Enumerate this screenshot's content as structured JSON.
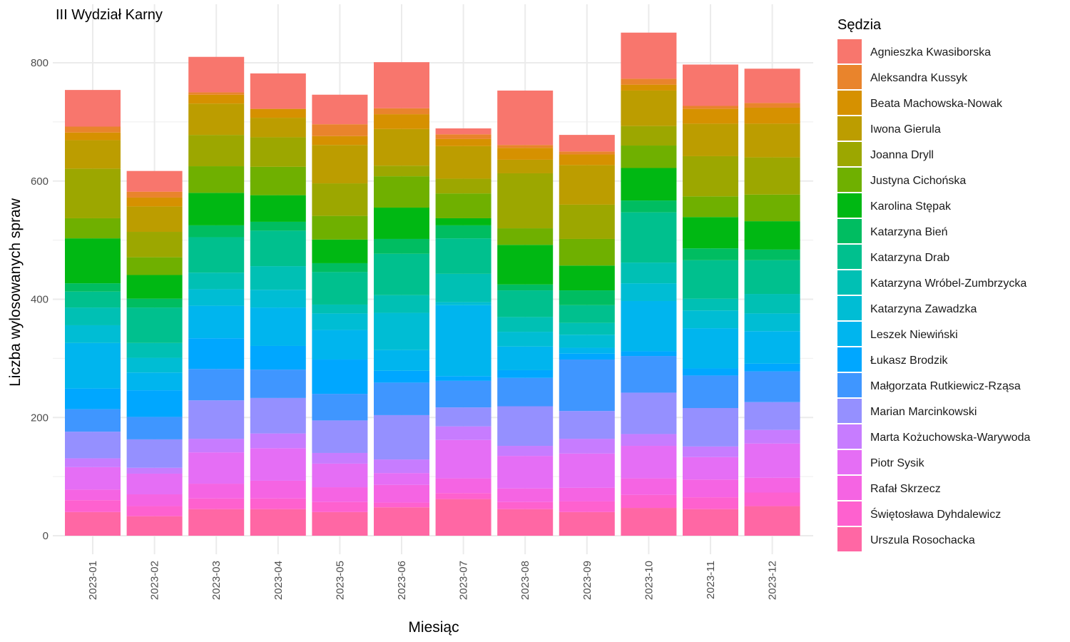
{
  "chart_data": {
    "type": "bar",
    "stacked": true,
    "title": "III Wydział Karny",
    "xlabel": "Miesiąc",
    "ylabel": "Liczba wylosowanych spraw",
    "ylim": [
      0,
      860
    ],
    "yticks": [
      0,
      200,
      400,
      600,
      800
    ],
    "grid": true,
    "legend": {
      "title": "Sędzia",
      "position": "right"
    },
    "categories": [
      "2023-01",
      "2023-02",
      "2023-03",
      "2023-04",
      "2023-05",
      "2023-06",
      "2023-07",
      "2023-08",
      "2023-09",
      "2023-10",
      "2023-11",
      "2023-12"
    ],
    "series": [
      {
        "name": "Agnieszka Kwasiborska",
        "color": "#F8766D",
        "values": [
          62,
          35,
          60,
          60,
          50,
          78,
          10,
          92,
          28,
          78,
          70,
          58
        ]
      },
      {
        "name": "Aleksandra Kussyk",
        "color": "#E9842C",
        "values": [
          10,
          10,
          4,
          0,
          20,
          10,
          8,
          5,
          5,
          10,
          5,
          8
        ]
      },
      {
        "name": "Beata Machowska-Nowak",
        "color": "#D69100",
        "values": [
          13,
          15,
          15,
          15,
          15,
          25,
          12,
          20,
          18,
          10,
          25,
          27
        ]
      },
      {
        "name": "Iwona Gierula",
        "color": "#BC9D00",
        "values": [
          48,
          43,
          53,
          33,
          65,
          62,
          55,
          23,
          67,
          60,
          55,
          57
        ]
      },
      {
        "name": "Joanna Dryll",
        "color": "#9CA700",
        "values": [
          84,
          43,
          53,
          50,
          55,
          18,
          25,
          93,
          58,
          33,
          68,
          63
        ]
      },
      {
        "name": "Justyna Cichońska",
        "color": "#6FB000",
        "values": [
          34,
          30,
          45,
          48,
          40,
          53,
          42,
          28,
          45,
          38,
          35,
          45
        ]
      },
      {
        "name": "Karolina Stępak",
        "color": "#00B813",
        "values": [
          76,
          40,
          55,
          45,
          40,
          53,
          12,
          67,
          42,
          55,
          53,
          48
        ]
      },
      {
        "name": "Katarzyna Bień",
        "color": "#00BD61",
        "values": [
          14,
          15,
          20,
          15,
          15,
          25,
          22,
          10,
          25,
          20,
          20,
          18
        ]
      },
      {
        "name": "Katarzyna Drab",
        "color": "#00C08E",
        "values": [
          27,
          60,
          60,
          60,
          55,
          70,
          60,
          45,
          30,
          85,
          65,
          57
        ]
      },
      {
        "name": "Katarzyna Wróbel-Zumbrzycka",
        "color": "#00C0B4",
        "values": [
          30,
          25,
          28,
          40,
          15,
          30,
          48,
          25,
          20,
          35,
          20,
          33
        ]
      },
      {
        "name": "Katarzyna Zawadzka",
        "color": "#00BDD4",
        "values": [
          30,
          25,
          28,
          30,
          28,
          63,
          5,
          25,
          22,
          30,
          30,
          30
        ]
      },
      {
        "name": "Leszek Niewiński",
        "color": "#00B5EE",
        "values": [
          77,
          30,
          55,
          65,
          50,
          35,
          120,
          40,
          10,
          85,
          68,
          55
        ]
      },
      {
        "name": "Łukasz Brodzik",
        "color": "#00A7FF",
        "values": [
          35,
          45,
          52,
          40,
          58,
          20,
          8,
          13,
          10,
          8,
          12,
          13
        ]
      },
      {
        "name": "Małgorzata Rutkiewicz-Rząsa",
        "color": "#3F96FF",
        "values": [
          38,
          38,
          53,
          48,
          45,
          55,
          45,
          48,
          87,
          62,
          55,
          52
        ]
      },
      {
        "name": "Marian Marcinkowski",
        "color": "#9590FF",
        "values": [
          45,
          48,
          65,
          60,
          55,
          75,
          32,
          67,
          47,
          70,
          65,
          47
        ]
      },
      {
        "name": "Marta Kożuchowska-Warywoda",
        "color": "#C77CFF",
        "values": [
          15,
          10,
          23,
          25,
          18,
          23,
          23,
          17,
          25,
          20,
          18,
          23
        ]
      },
      {
        "name": "Piotr Sysik",
        "color": "#E56EF5",
        "values": [
          38,
          35,
          53,
          55,
          40,
          20,
          65,
          55,
          58,
          55,
          38,
          58
        ]
      },
      {
        "name": "Rafał Skrzecz",
        "color": "#F564E3",
        "values": [
          18,
          20,
          25,
          30,
          25,
          30,
          25,
          23,
          23,
          28,
          30,
          25
        ]
      },
      {
        "name": "Świętosława Dyhdalewicz",
        "color": "#FE61CF",
        "values": [
          20,
          17,
          18,
          18,
          17,
          8,
          10,
          12,
          18,
          22,
          20,
          23
        ]
      },
      {
        "name": "Urszula Rosochacka",
        "color": "#FF67A4",
        "values": [
          40,
          33,
          45,
          45,
          40,
          48,
          62,
          45,
          40,
          47,
          45,
          50
        ]
      }
    ]
  }
}
